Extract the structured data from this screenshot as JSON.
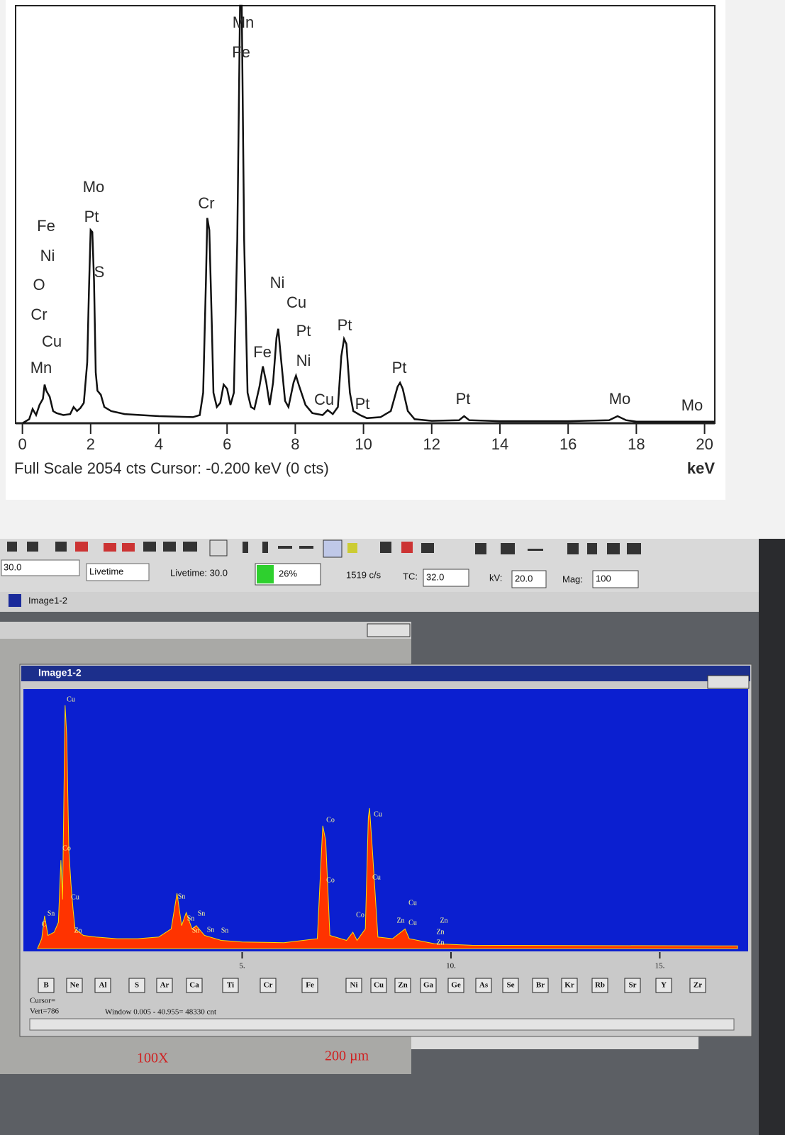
{
  "toolbar": {
    "preset": "30.0",
    "mode": "Livetime",
    "livetime": "Livetime:  30.0",
    "deadtime": "26%",
    "rate": "1519  c/s",
    "tc_label": "TC:",
    "tc": "32.0",
    "kv_label": "kV:",
    "kv": "20.0",
    "mag_label": "Mag:",
    "mag": "100"
  },
  "tab": "Image1-2",
  "window_title": "Image1-2",
  "image_labels": {
    "magnification": "100X",
    "scale": "200  µm"
  },
  "chart_data": [
    {
      "type": "line",
      "x": [
        0.0,
        0.2,
        0.3,
        0.4,
        0.5,
        0.6,
        0.65,
        0.7,
        0.8,
        0.9,
        1.0,
        1.2,
        1.4,
        1.5,
        1.6,
        1.7,
        1.8,
        1.9,
        1.95,
        2.0,
        2.05,
        2.1,
        2.15,
        2.2,
        2.3,
        2.4,
        2.6,
        3.0,
        4.0,
        5.0,
        5.2,
        5.3,
        5.38,
        5.42,
        5.48,
        5.55,
        5.6,
        5.7,
        5.8,
        5.9,
        6.0,
        6.1,
        6.2,
        6.3,
        6.38,
        6.43,
        6.5,
        6.6,
        6.7,
        6.8,
        6.95,
        7.05,
        7.15,
        7.25,
        7.35,
        7.45,
        7.5,
        7.58,
        7.7,
        7.8,
        7.95,
        8.02,
        8.1,
        8.3,
        8.5,
        8.8,
        8.95,
        9.1,
        9.25,
        9.35,
        9.43,
        9.5,
        9.6,
        9.7,
        9.9,
        10.1,
        10.5,
        10.8,
        11.0,
        11.07,
        11.15,
        11.3,
        11.5,
        12.0,
        12.8,
        12.95,
        13.1,
        14.0,
        16.0,
        17.2,
        17.45,
        17.7,
        18.0,
        20.0,
        20.3
      ],
      "values": [
        0,
        20,
        70,
        40,
        90,
        120,
        190,
        160,
        130,
        60,
        50,
        40,
        45,
        80,
        60,
        75,
        100,
        300,
        650,
        950,
        940,
        700,
        250,
        160,
        140,
        80,
        60,
        45,
        35,
        30,
        40,
        150,
        700,
        1010,
        950,
        500,
        150,
        80,
        100,
        190,
        170,
        90,
        150,
        900,
        2054,
        2054,
        900,
        150,
        80,
        70,
        180,
        280,
        200,
        90,
        200,
        420,
        465,
        320,
        110,
        80,
        200,
        234,
        190,
        90,
        50,
        40,
        65,
        45,
        80,
        330,
        415,
        390,
        150,
        60,
        40,
        25,
        30,
        60,
        180,
        199,
        170,
        60,
        20,
        12,
        15,
        35,
        15,
        10,
        10,
        15,
        35,
        15,
        8,
        8,
        8
      ],
      "color": "#111111",
      "xlim": [
        -0.2,
        20.3
      ],
      "ylim": [
        0,
        2054
      ],
      "xticks": [
        0,
        2,
        4,
        6,
        8,
        10,
        12,
        14,
        16,
        18,
        20
      ],
      "x_label": "keV",
      "footer": "Full Scale 2054 cts  Cursor: -0.200 keV (0 cts)",
      "peak_labels": [
        "Mn",
        "Fe",
        "Mo",
        "Pt",
        "S",
        "Fe",
        "Ni",
        "O",
        "Cr",
        "Cu",
        "Mn",
        "Cr",
        "Ni",
        "Cu",
        "Pt",
        "Pt",
        "Ni",
        "Fe",
        "Cu",
        "Pt",
        "Pt",
        "Pt",
        "Mo",
        "Mo"
      ]
    },
    {
      "type": "area",
      "x": [
        0.1,
        0.2,
        0.27,
        0.35,
        0.5,
        0.6,
        0.66,
        0.7,
        0.76,
        0.8,
        0.85,
        0.9,
        0.95,
        1.0,
        1.2,
        1.5,
        2.0,
        2.5,
        3.0,
        3.3,
        3.44,
        3.55,
        3.66,
        3.8,
        3.9,
        4.1,
        4.5,
        5.0,
        6.0,
        6.8,
        6.9,
        6.93,
        7.0,
        7.1,
        7.5,
        7.65,
        7.75,
        7.95,
        8.02,
        8.05,
        8.12,
        8.25,
        8.6,
        8.9,
        9.0,
        9.6,
        10.5,
        16.86
      ],
      "values": [
        0,
        30,
        100,
        40,
        50,
        80,
        270,
        150,
        743,
        650,
        300,
        200,
        120,
        60,
        40,
        35,
        30,
        30,
        35,
        60,
        169,
        70,
        110,
        60,
        70,
        40,
        25,
        20,
        18,
        30,
        300,
        375,
        330,
        40,
        25,
        50,
        25,
        60,
        400,
        429,
        300,
        35,
        30,
        60,
        30,
        15,
        10,
        8
      ],
      "color": "#ff3300",
      "edge_color": "#ffdd00",
      "background": "#0b1fd0",
      "xlim": [
        0,
        16.86
      ],
      "ylim": [
        0,
        786
      ],
      "xticks": [
        {
          "value": 5,
          "label": "5."
        },
        {
          "value": 10,
          "label": "10."
        },
        {
          "value": 15,
          "label": "15."
        }
      ],
      "peak_labels": [
        "Cu",
        "Co",
        "Cu",
        "Co",
        "Cu",
        "Sn",
        "Co",
        "Cu",
        "Sn",
        "Sn",
        "Sn",
        "Sn",
        "Sn",
        "Sn",
        "Co",
        "Cu",
        "Zn",
        "Cu",
        "Zn",
        "Zn",
        "Zn",
        "C",
        "Zn"
      ],
      "element_buttons": [
        "B",
        "Ne",
        "Al",
        "S",
        "Ar",
        "Ca",
        "Ti",
        "Cr",
        "Fe",
        "Ni",
        "Cu",
        "Zn",
        "Ga",
        "Ge",
        "As",
        "Se",
        "Br",
        "Kr",
        "Rb",
        "Sr",
        "Y",
        "Zr"
      ],
      "cursor": "Cursor=",
      "vert": "Vert=786",
      "window": "Window 0.005 - 40.955=  48330 cnt"
    }
  ]
}
